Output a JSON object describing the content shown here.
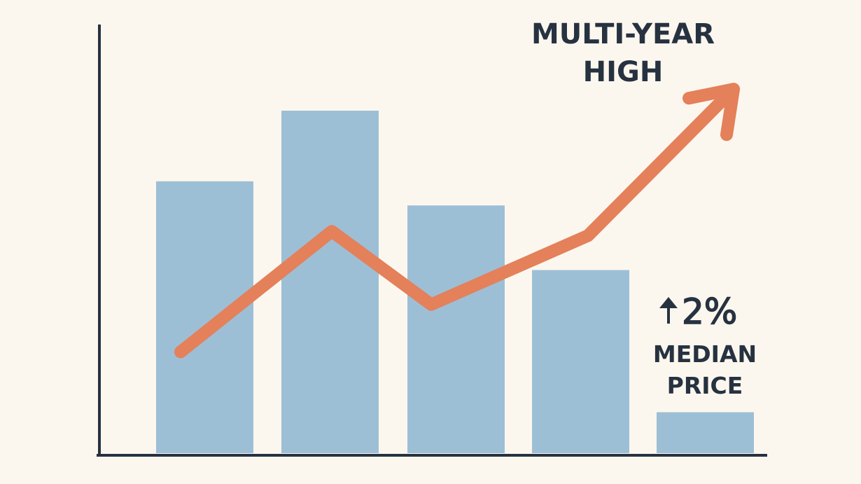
{
  "chart_data": {
    "type": "bar",
    "title": "",
    "xlabel": "",
    "ylabel": "",
    "ylim": [
      0,
      100
    ],
    "grid": false,
    "bars": {
      "values": [
        63.6,
        80,
        58,
        43,
        10
      ],
      "color": "#9dbfd6"
    },
    "trend_line": {
      "values": [
        24,
        52,
        35,
        51,
        85
      ],
      "color": "#e4805a",
      "ends_with_arrow": true
    },
    "annotations": {
      "headline": [
        "MULTI-YEAR",
        "HIGH"
      ],
      "change": "2%",
      "change_icon": "up-arrow-icon",
      "caption": [
        "MEDIAN",
        "PRICE"
      ]
    },
    "colors": {
      "background": "#fcf7ee",
      "axis": "#263240",
      "text": "#263240"
    }
  }
}
